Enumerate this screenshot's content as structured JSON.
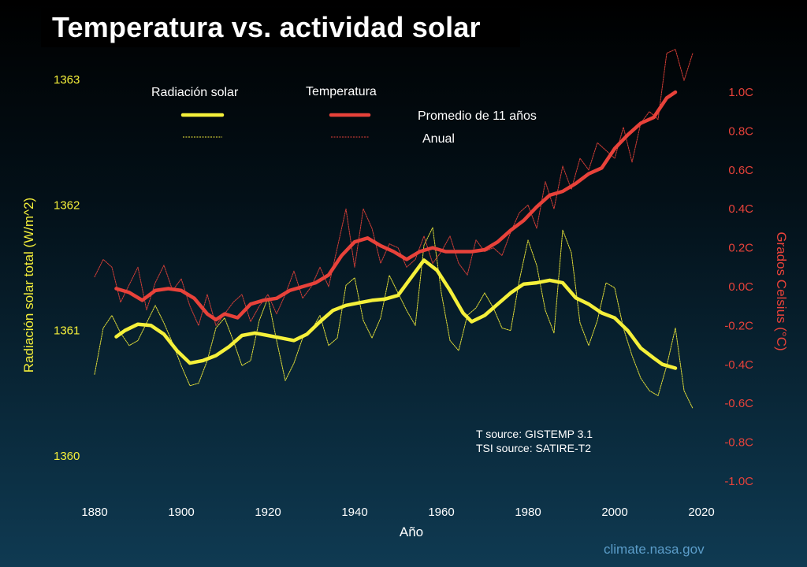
{
  "title": "Temperatura vs. actividad solar",
  "colors": {
    "solar": "#f5f03a",
    "temp": "#e8423a",
    "text": "#ffffff"
  },
  "legend": {
    "solar_label": "Radiación solar",
    "temp_label": "Temperatura",
    "avg_label": "Promedio de 11 años",
    "annual_label": "Anual"
  },
  "sources": {
    "t_source": "T source: GISTEMP 3.1",
    "tsi_source": "TSI source: SATIRE-T2"
  },
  "credit": "climate.nasa.gov",
  "chart_data": {
    "type": "line",
    "title": "Temperatura vs. actividad solar",
    "xlabel": "Año",
    "ylabel_left": "Radiación solar total (W/m^2)",
    "ylabel_right": "Grados Celsius (°C)",
    "xlim": [
      1880,
      2020
    ],
    "ylim_left": [
      1360,
      1363
    ],
    "ylim_right": [
      -1.0,
      1.0
    ],
    "x_ticks": [
      "1880",
      "1900",
      "1920",
      "1940",
      "1960",
      "1980",
      "2000",
      "2020"
    ],
    "y_left_ticks": [
      "1360",
      "1361",
      "1362",
      "1363"
    ],
    "y_right_ticks": [
      "-1.0C",
      "-0.8C",
      "-0.6C",
      "-0.4C",
      "-0.2C",
      "0.0C",
      "0.2C",
      "0.4C",
      "0.6C",
      "0.8C",
      "1.0C"
    ],
    "series": [
      {
        "name": "Radiación solar - Promedio de 11 años",
        "axis": "left",
        "style": "thick",
        "x": [
          1885,
          1887,
          1890,
          1893,
          1896,
          1899,
          1902,
          1905,
          1908,
          1911,
          1914,
          1917,
          1920,
          1923,
          1926,
          1929,
          1932,
          1935,
          1938,
          1941,
          1944,
          1947,
          1950,
          1953,
          1956,
          1959,
          1962,
          1965,
          1967,
          1970,
          1973,
          1976,
          1979,
          1982,
          1985,
          1988,
          1991,
          1994,
          1997,
          2000,
          2003,
          2006,
          2009,
          2011,
          2014
        ],
        "values": [
          1360.95,
          1361.0,
          1361.05,
          1361.04,
          1360.97,
          1360.84,
          1360.74,
          1360.76,
          1360.8,
          1360.87,
          1360.96,
          1360.98,
          1360.96,
          1360.94,
          1360.92,
          1360.97,
          1361.07,
          1361.16,
          1361.2,
          1361.22,
          1361.24,
          1361.25,
          1361.28,
          1361.42,
          1361.56,
          1361.48,
          1361.32,
          1361.14,
          1361.07,
          1361.12,
          1361.21,
          1361.3,
          1361.37,
          1361.38,
          1361.4,
          1361.38,
          1361.26,
          1361.21,
          1361.14,
          1361.1,
          1361.0,
          1360.86,
          1360.78,
          1360.73,
          1360.7
        ]
      },
      {
        "name": "Radiación solar - Anual",
        "axis": "left",
        "style": "thin",
        "x": [
          1880,
          1882,
          1884,
          1886,
          1888,
          1890,
          1892,
          1894,
          1896,
          1898,
          1900,
          1902,
          1904,
          1906,
          1908,
          1910,
          1912,
          1914,
          1916,
          1918,
          1920,
          1922,
          1924,
          1926,
          1928,
          1930,
          1932,
          1934,
          1936,
          1938,
          1940,
          1942,
          1944,
          1946,
          1948,
          1950,
          1952,
          1954,
          1956,
          1958,
          1960,
          1962,
          1964,
          1966,
          1968,
          1970,
          1972,
          1974,
          1976,
          1978,
          1980,
          1982,
          1984,
          1986,
          1988,
          1990,
          1992,
          1994,
          1996,
          1998,
          2000,
          2002,
          2004,
          2006,
          2008,
          2010,
          2012,
          2014,
          2016,
          2018
        ],
        "values": [
          1360.65,
          1361.02,
          1361.12,
          1360.98,
          1360.88,
          1360.92,
          1361.06,
          1361.2,
          1361.06,
          1360.9,
          1360.72,
          1360.56,
          1360.58,
          1360.76,
          1361.02,
          1361.1,
          1360.92,
          1360.72,
          1360.76,
          1361.08,
          1361.26,
          1360.92,
          1360.6,
          1360.74,
          1360.94,
          1361.0,
          1361.12,
          1360.88,
          1360.94,
          1361.36,
          1361.42,
          1361.08,
          1360.94,
          1361.1,
          1361.44,
          1361.3,
          1361.16,
          1361.04,
          1361.68,
          1361.82,
          1361.3,
          1360.92,
          1360.84,
          1361.12,
          1361.18,
          1361.3,
          1361.18,
          1361.02,
          1361.0,
          1361.4,
          1361.72,
          1361.52,
          1361.16,
          1360.98,
          1361.8,
          1361.62,
          1361.06,
          1360.88,
          1361.08,
          1361.38,
          1361.34,
          1361.02,
          1360.8,
          1360.62,
          1360.52,
          1360.48,
          1360.72,
          1361.02,
          1360.52,
          1360.38
        ]
      },
      {
        "name": "Temperatura - Promedio de 11 años",
        "axis": "right",
        "style": "thick",
        "x": [
          1885,
          1888,
          1891,
          1894,
          1897,
          1900,
          1903,
          1906,
          1908,
          1910,
          1913,
          1916,
          1919,
          1922,
          1925,
          1928,
          1931,
          1934,
          1937,
          1940,
          1943,
          1946,
          1949,
          1952,
          1955,
          1958,
          1961,
          1964,
          1967,
          1970,
          1973,
          1976,
          1979,
          1982,
          1985,
          1988,
          1991,
          1994,
          1997,
          2000,
          2003,
          2006,
          2009,
          2012,
          2014
        ],
        "values": [
          -0.01,
          -0.03,
          -0.07,
          -0.02,
          -0.01,
          -0.02,
          -0.06,
          -0.14,
          -0.17,
          -0.14,
          -0.16,
          -0.09,
          -0.07,
          -0.06,
          -0.02,
          0.0,
          0.02,
          0.06,
          0.16,
          0.23,
          0.25,
          0.21,
          0.18,
          0.14,
          0.18,
          0.2,
          0.18,
          0.18,
          0.18,
          0.19,
          0.23,
          0.29,
          0.34,
          0.41,
          0.47,
          0.49,
          0.53,
          0.58,
          0.61,
          0.71,
          0.78,
          0.84,
          0.87,
          0.97,
          1.0
        ]
      },
      {
        "name": "Temperatura - Anual",
        "axis": "right",
        "style": "thin",
        "x": [
          1880,
          1882,
          1884,
          1886,
          1888,
          1890,
          1892,
          1894,
          1896,
          1898,
          1900,
          1902,
          1904,
          1906,
          1908,
          1910,
          1912,
          1914,
          1916,
          1918,
          1920,
          1922,
          1924,
          1926,
          1928,
          1930,
          1932,
          1934,
          1936,
          1938,
          1940,
          1942,
          1944,
          1946,
          1948,
          1950,
          1952,
          1954,
          1956,
          1958,
          1960,
          1962,
          1964,
          1966,
          1968,
          1970,
          1972,
          1974,
          1976,
          1978,
          1980,
          1982,
          1984,
          1986,
          1988,
          1990,
          1992,
          1994,
          1996,
          2000,
          2002,
          2004,
          2006,
          2008,
          2010,
          2012,
          2014,
          2016,
          2018
        ],
        "values": [
          0.05,
          0.14,
          0.1,
          -0.08,
          0.01,
          0.1,
          -0.12,
          0.02,
          0.11,
          -0.02,
          0.04,
          -0.1,
          -0.2,
          -0.04,
          -0.2,
          -0.14,
          -0.08,
          -0.04,
          -0.18,
          -0.1,
          -0.04,
          -0.14,
          -0.04,
          0.08,
          -0.06,
          0.0,
          0.1,
          0.0,
          0.2,
          0.4,
          0.1,
          0.4,
          0.3,
          0.12,
          0.22,
          0.2,
          0.1,
          0.14,
          0.26,
          0.12,
          0.18,
          0.26,
          0.12,
          0.06,
          0.24,
          0.18,
          0.2,
          0.16,
          0.28,
          0.38,
          0.42,
          0.3,
          0.54,
          0.4,
          0.62,
          0.5,
          0.66,
          0.6,
          0.74,
          0.66,
          0.82,
          0.64,
          0.84,
          0.9,
          0.86,
          1.2,
          1.22,
          1.06,
          1.2
        ]
      }
    ]
  }
}
